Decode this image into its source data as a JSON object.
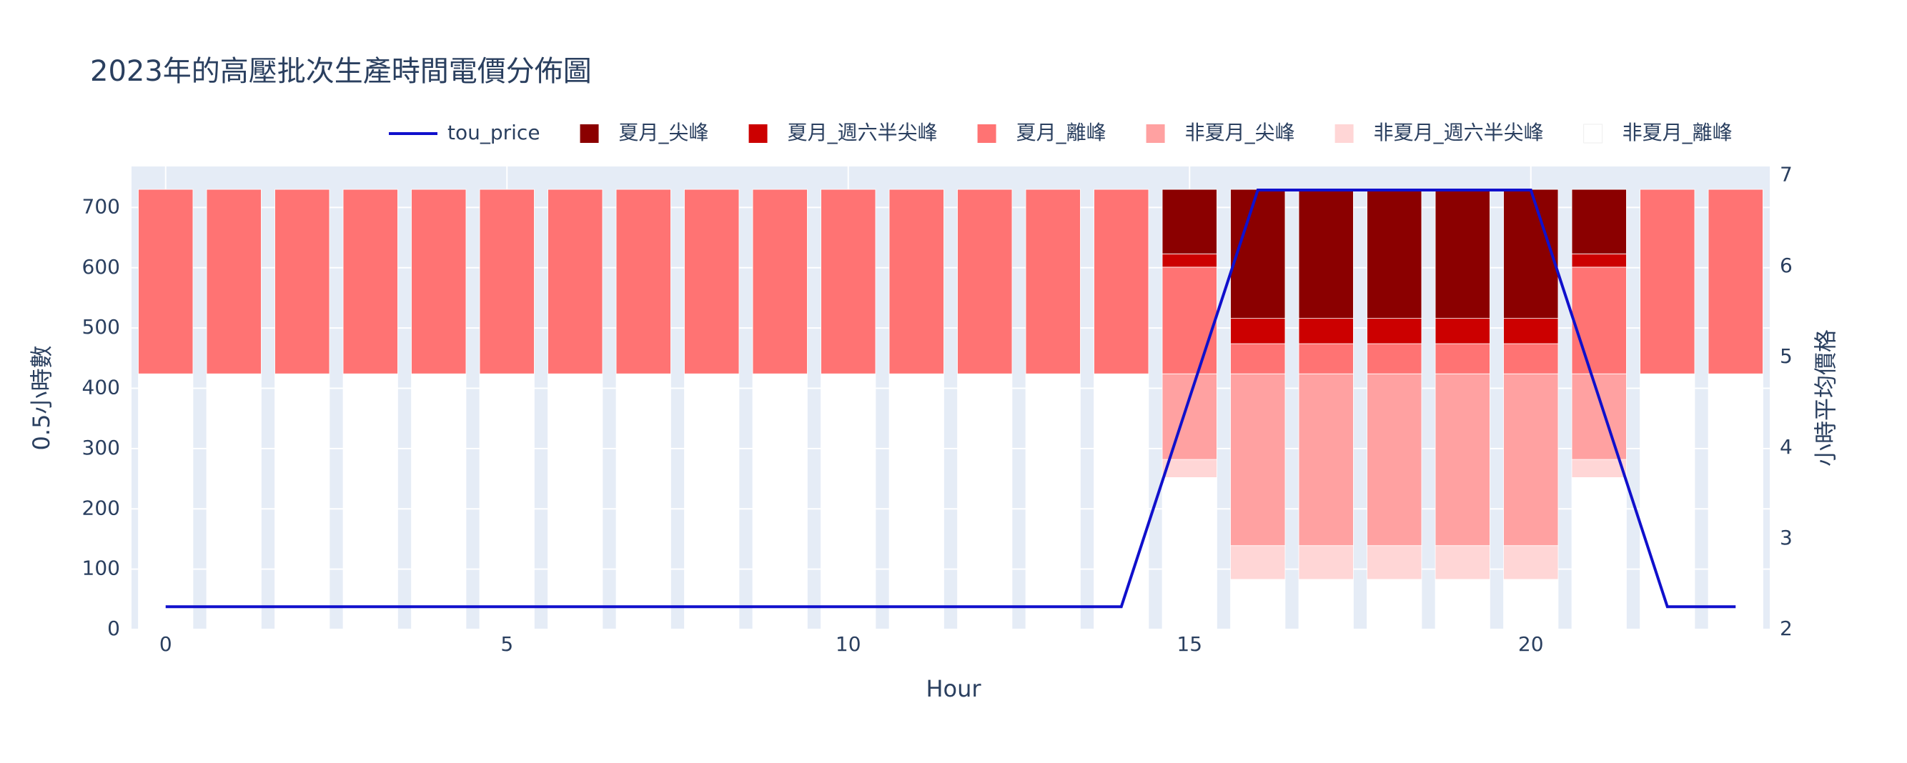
{
  "chart_data": {
    "type": "bar",
    "barmode": "stack",
    "title": "2023年的高壓批次生產時間電價分佈圖",
    "x_label": "Hour",
    "y_label": "0.5小時數",
    "y2_label": "小時平均價格",
    "x": [
      0,
      1,
      2,
      3,
      4,
      5,
      6,
      7,
      8,
      9,
      10,
      11,
      12,
      13,
      14,
      15,
      16,
      17,
      18,
      19,
      20,
      21,
      22,
      23
    ],
    "xlim": [
      -0.5,
      23.5
    ],
    "xticks": [
      0,
      5,
      10,
      15,
      20
    ],
    "ylim": [
      0,
      768
    ],
    "yticks": [
      0,
      100,
      200,
      300,
      400,
      500,
      600,
      700
    ],
    "y2lim": [
      2,
      7.1
    ],
    "y2ticks": [
      2,
      3,
      4,
      5,
      6,
      7
    ],
    "grid": true,
    "series": [
      {
        "name": "tou_price",
        "type": "line",
        "axis": "y2",
        "color": "#1010cc",
        "values": [
          2.25,
          2.25,
          2.25,
          2.25,
          2.25,
          2.25,
          2.25,
          2.25,
          2.25,
          2.25,
          2.25,
          2.25,
          2.25,
          2.25,
          2.25,
          4.55,
          6.84,
          6.84,
          6.84,
          6.84,
          6.84,
          4.55,
          2.25,
          2.25
        ]
      },
      {
        "name": "夏月_尖峰",
        "color": "#8b0000",
        "values": [
          0,
          0,
          0,
          0,
          0,
          0,
          0,
          0,
          0,
          0,
          0,
          0,
          0,
          0,
          0,
          107,
          214,
          214,
          214,
          214,
          214,
          107,
          0,
          0
        ]
      },
      {
        "name": "夏月_週六半尖峰",
        "color": "#cc0000",
        "values": [
          0,
          0,
          0,
          0,
          0,
          0,
          0,
          0,
          0,
          0,
          0,
          0,
          0,
          0,
          0,
          22,
          42,
          42,
          42,
          42,
          42,
          22,
          0,
          0
        ]
      },
      {
        "name": "夏月_離峰",
        "color": "#ff7373",
        "values": [
          306,
          306,
          306,
          306,
          306,
          306,
          306,
          306,
          306,
          306,
          306,
          306,
          306,
          306,
          306,
          177,
          50,
          50,
          50,
          50,
          50,
          177,
          306,
          306
        ]
      },
      {
        "name": "非夏月_尖峰",
        "color": "#ffa1a1",
        "values": [
          0,
          0,
          0,
          0,
          0,
          0,
          0,
          0,
          0,
          0,
          0,
          0,
          0,
          0,
          0,
          142,
          285,
          285,
          285,
          285,
          285,
          142,
          0,
          0
        ]
      },
      {
        "name": "非夏月_週六半尖峰",
        "color": "#ffd6d6",
        "values": [
          0,
          0,
          0,
          0,
          0,
          0,
          0,
          0,
          0,
          0,
          0,
          0,
          0,
          0,
          0,
          30,
          56,
          56,
          56,
          56,
          56,
          30,
          0,
          0
        ]
      },
      {
        "name": "非夏月_離峰",
        "color": "#ffffff",
        "values": [
          424,
          424,
          424,
          424,
          424,
          424,
          424,
          424,
          424,
          424,
          424,
          424,
          424,
          424,
          424,
          252,
          83,
          83,
          83,
          83,
          83,
          252,
          424,
          424
        ]
      }
    ]
  }
}
